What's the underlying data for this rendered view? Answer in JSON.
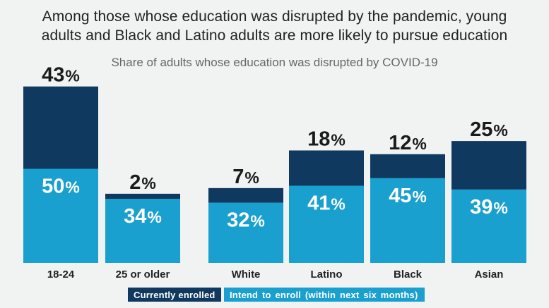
{
  "title_line1": "Among those whose education was disrupted by the pandemic, young",
  "title_line2": "adults and Black and Latino adults are more likely to pursue education",
  "subtitle": "Share of adults whose education was disrupted by COVID-19",
  "legend": {
    "enrolled": "Currently enrolled",
    "intend": "Intend to enroll  (within  next  six  months)"
  },
  "colors": {
    "enrolled": "#10395f",
    "intend": "#19a0cf",
    "text": "#1a1a1a"
  },
  "chart_data": {
    "type": "bar",
    "stacked": true,
    "title": "Among those whose education was disrupted by the pandemic, young adults and Black and Latino adults are more likely to pursue education",
    "subtitle": "Share of adults whose education was disrupted by COVID-19",
    "categories": [
      "18-24",
      "25 or older",
      "White",
      "Latino",
      "Black",
      "Asian"
    ],
    "series": [
      {
        "name": "Intend to enroll  (within  next  six  months)",
        "values": [
          50,
          34,
          32,
          41,
          45,
          39
        ]
      },
      {
        "name": "Currently enrolled",
        "values": [
          43,
          2,
          7,
          18,
          12,
          25
        ]
      }
    ],
    "unit": "%",
    "ylim": [
      0,
      93
    ],
    "grid": false,
    "legend_position": "bottom"
  }
}
